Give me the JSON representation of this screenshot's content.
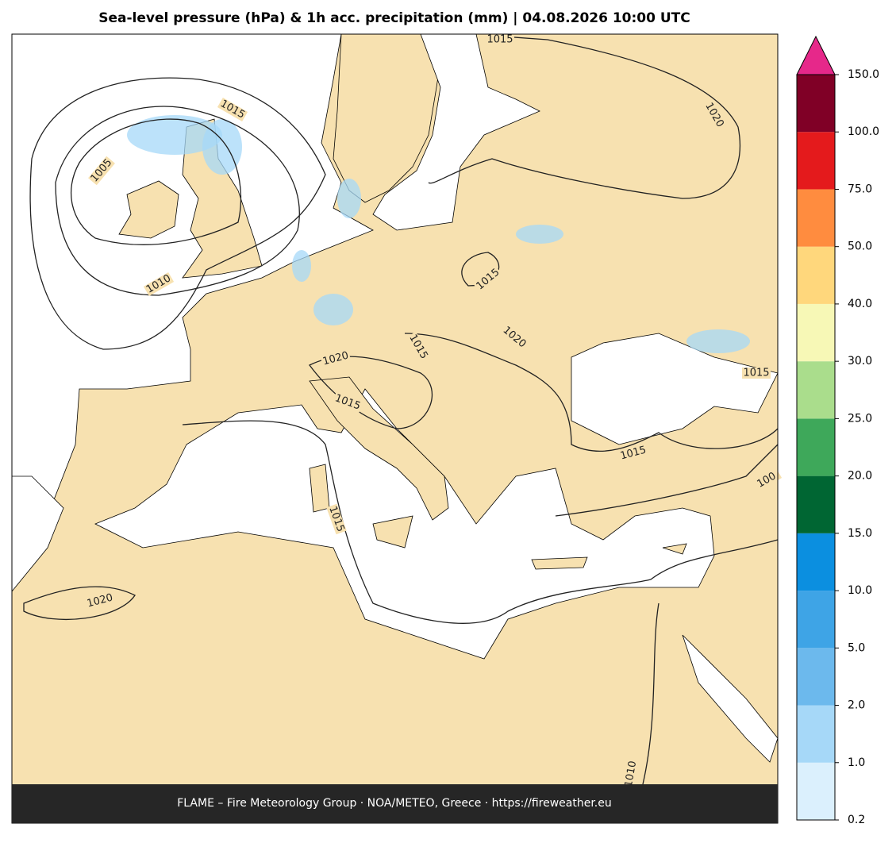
{
  "title": "Sea-level pressure (hPa) & 1h acc. precipitation (mm)  |  04.08.2026 10:00 UTC",
  "footer": "FLAME – Fire Meteorology Group · NOA/METEO, Greece · https://fireweather.eu",
  "colorbar": {
    "levels": [
      0.2,
      {
        "value": 1,
        "label": "1.0"
      },
      {
        "value": 2,
        "label": "2.0"
      },
      {
        "value": 5,
        "label": "5.0"
      },
      {
        "value": 10,
        "label": "10.0"
      },
      {
        "value": 15,
        "label": "15.0"
      },
      {
        "value": 20,
        "label": "20.0"
      },
      {
        "value": 25,
        "label": "25.0"
      },
      {
        "value": 30,
        "label": "30.0"
      },
      {
        "value": 40,
        "label": "40.0"
      },
      {
        "value": 50,
        "label": "50.0"
      },
      {
        "value": 75,
        "label": "75.0"
      },
      {
        "value": 100,
        "label": "100.0"
      },
      {
        "value": 150,
        "label": "150.0"
      }
    ],
    "colors": [
      "#dbf0fd",
      "#a6d8f8",
      "#6cb9ed",
      "#3ea4e6",
      "#0b8fe0",
      "#006633",
      "#3ea85a",
      "#aadd8c",
      "#f7f8b6",
      "#ffd77c",
      "#ff8c3f",
      "#e41a1c",
      "#800026"
    ],
    "extend_color": "#e6288a"
  },
  "contour_labels": [
    "1015",
    "1015",
    "1020",
    "1005",
    "1010",
    "1015",
    "1020",
    "1015",
    "1020",
    "1015",
    "1015",
    "1015",
    "1015",
    "1020",
    "1010",
    "100"
  ]
}
